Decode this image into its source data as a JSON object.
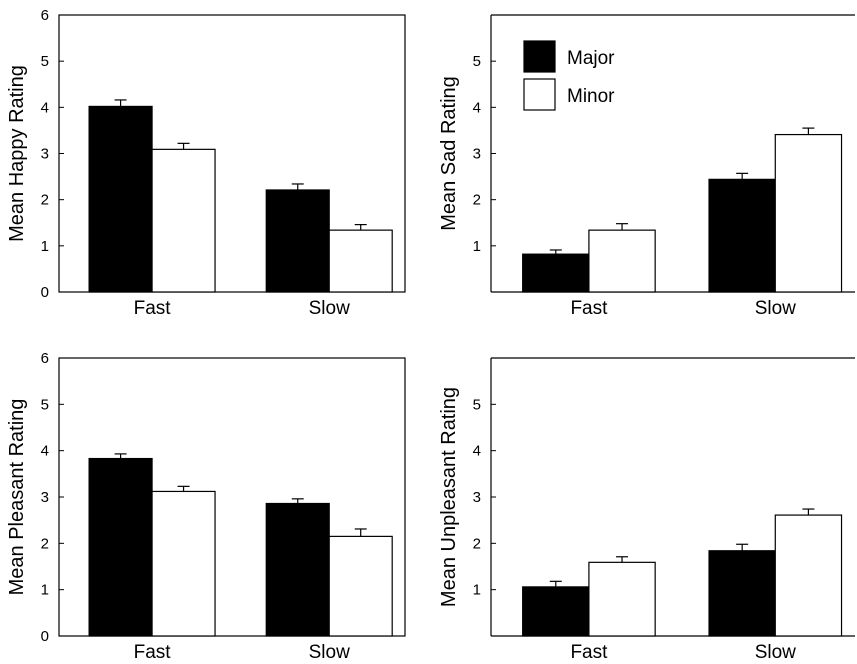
{
  "chart_data": [
    {
      "type": "bar",
      "categories": [
        "Fast",
        "Slow"
      ],
      "series": [
        {
          "name": "Major",
          "values": [
            4.02,
            2.21
          ],
          "errors": [
            0.14,
            0.13
          ],
          "color": "#000000"
        },
        {
          "name": "Minor",
          "values": [
            3.09,
            1.34
          ],
          "errors": [
            0.13,
            0.12
          ],
          "color": "#ffffff"
        }
      ],
      "ylabel": "Mean Happy Rating",
      "ylim": [
        0,
        6
      ],
      "yticks": [
        "0",
        "1",
        "2",
        "3",
        "4",
        "5",
        "6"
      ],
      "legend": false
    },
    {
      "type": "bar",
      "categories": [
        "Fast",
        "Slow"
      ],
      "series": [
        {
          "name": "Major",
          "values": [
            0.82,
            2.44
          ],
          "errors": [
            0.09,
            0.13
          ],
          "color": "#000000"
        },
        {
          "name": "Minor",
          "values": [
            1.34,
            3.41
          ],
          "errors": [
            0.14,
            0.14
          ],
          "color": "#ffffff"
        }
      ],
      "ylabel": "Mean Sad Rating",
      "ylim": [
        0,
        6
      ],
      "yticks": [
        "",
        "1",
        "2",
        "3",
        "4",
        "5",
        ""
      ],
      "legend": true,
      "legend_position": "top-left"
    },
    {
      "type": "bar",
      "categories": [
        "Fast",
        "Slow"
      ],
      "series": [
        {
          "name": "Major",
          "values": [
            3.83,
            2.86
          ],
          "errors": [
            0.1,
            0.1
          ],
          "color": "#000000"
        },
        {
          "name": "Minor",
          "values": [
            3.12,
            2.15
          ],
          "errors": [
            0.11,
            0.16
          ],
          "color": "#ffffff"
        }
      ],
      "ylabel": "Mean Pleasant Rating",
      "ylim": [
        0,
        6
      ],
      "yticks": [
        "0",
        "1",
        "2",
        "3",
        "4",
        "5",
        "6"
      ],
      "legend": false
    },
    {
      "type": "bar",
      "categories": [
        "Fast",
        "Slow"
      ],
      "series": [
        {
          "name": "Major",
          "values": [
            1.06,
            1.84
          ],
          "errors": [
            0.12,
            0.14
          ],
          "color": "#000000"
        },
        {
          "name": "Minor",
          "values": [
            1.59,
            2.61
          ],
          "errors": [
            0.12,
            0.13
          ],
          "color": "#ffffff"
        }
      ],
      "ylabel": "Mean Unpleasant Rating",
      "ylim": [
        0,
        6
      ],
      "yticks": [
        "",
        "1",
        "2",
        "3",
        "4",
        "5",
        ""
      ],
      "legend": false
    }
  ]
}
